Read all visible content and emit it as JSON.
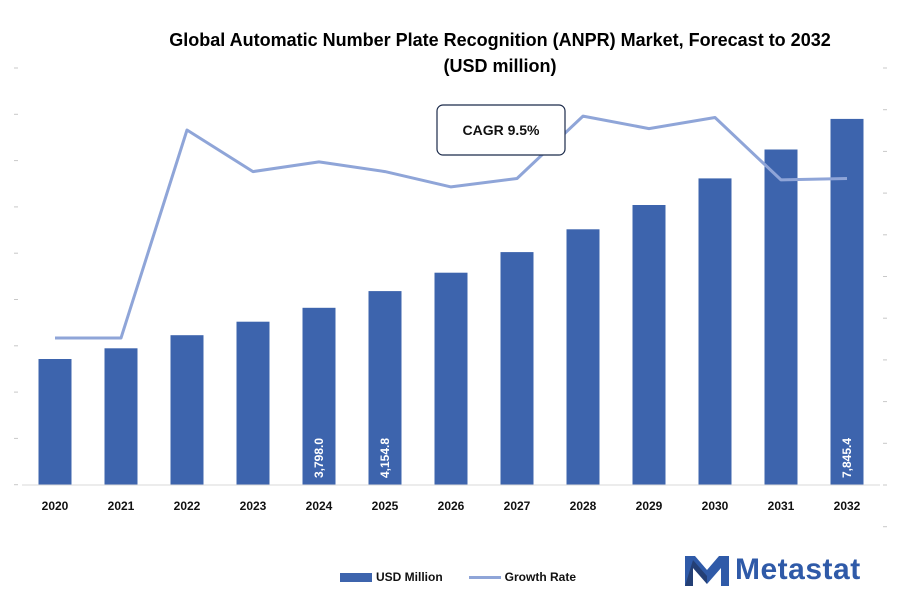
{
  "title": "Global Automatic Number Plate Recognition (ANPR) Market, Forecast to 2032 (USD million)",
  "cagr_label": "CAGR 9.5%",
  "logo_text": "Metastat",
  "colors": {
    "bar": "#3d64ad",
    "line": "#8fa5d8",
    "logo": "#2f5aa8"
  },
  "chart_data": {
    "type": "bar",
    "categories": [
      "2020",
      "2021",
      "2022",
      "2023",
      "2024",
      "2025",
      "2026",
      "2027",
      "2028",
      "2029",
      "2030",
      "2031",
      "2032"
    ],
    "series": [
      {
        "name": "USD Million",
        "type": "bar",
        "values": [
          2700,
          2930,
          3210,
          3500,
          3798.0,
          4154.8,
          4550,
          4990,
          5480,
          6000,
          6570,
          7190,
          7845.4
        ],
        "labels": [
          null,
          null,
          null,
          null,
          "3,798.0",
          "4,154.8",
          null,
          null,
          null,
          null,
          null,
          null,
          "7,845.4"
        ]
      },
      {
        "name": "Growth Rate",
        "type": "line",
        "values": [
          8.1,
          8.1,
          9.6,
          9.3,
          9.37,
          9.3,
          9.19,
          9.25,
          9.7,
          9.61,
          9.69,
          9.24,
          9.25
        ]
      }
    ],
    "legend_position": "bottom",
    "grid": false
  }
}
